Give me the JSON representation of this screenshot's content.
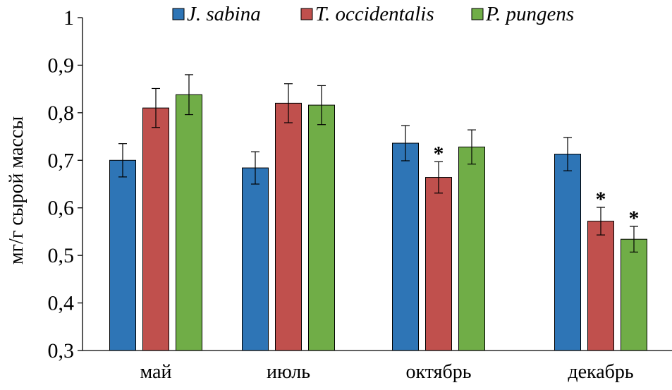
{
  "chart_data": {
    "type": "bar",
    "ylabel": "мг/г сырой массы",
    "ylim": [
      0.3,
      1.0
    ],
    "yticks": [
      0.3,
      0.4,
      0.5,
      0.6,
      0.7,
      0.8,
      0.9,
      1.0
    ],
    "ytick_labels": [
      "0,3",
      "0,4",
      "0,5",
      "0,6",
      "0,7",
      "0,8",
      "0,9",
      "1"
    ],
    "categories": [
      "май",
      "июль",
      "октябрь",
      "декабрь"
    ],
    "legend_position": "top",
    "grid": false,
    "series": [
      {
        "name": "J. sabina",
        "color": "#2E75B6",
        "values": [
          0.7,
          0.684,
          0.736,
          0.713
        ],
        "errors": [
          0.035,
          0.034,
          0.037,
          0.035
        ],
        "marks": [
          "",
          "",
          "",
          ""
        ]
      },
      {
        "name": "T. occidentalis",
        "color": "#C0504D",
        "values": [
          0.81,
          0.82,
          0.664,
          0.572
        ],
        "errors": [
          0.041,
          0.041,
          0.033,
          0.029
        ],
        "marks": [
          "",
          "",
          "*",
          "*"
        ]
      },
      {
        "name": "P. pungens",
        "color": "#70AD47",
        "values": [
          0.838,
          0.816,
          0.728,
          0.534
        ],
        "errors": [
          0.042,
          0.041,
          0.036,
          0.027
        ],
        "marks": [
          "",
          "",
          "",
          "*"
        ]
      }
    ]
  }
}
